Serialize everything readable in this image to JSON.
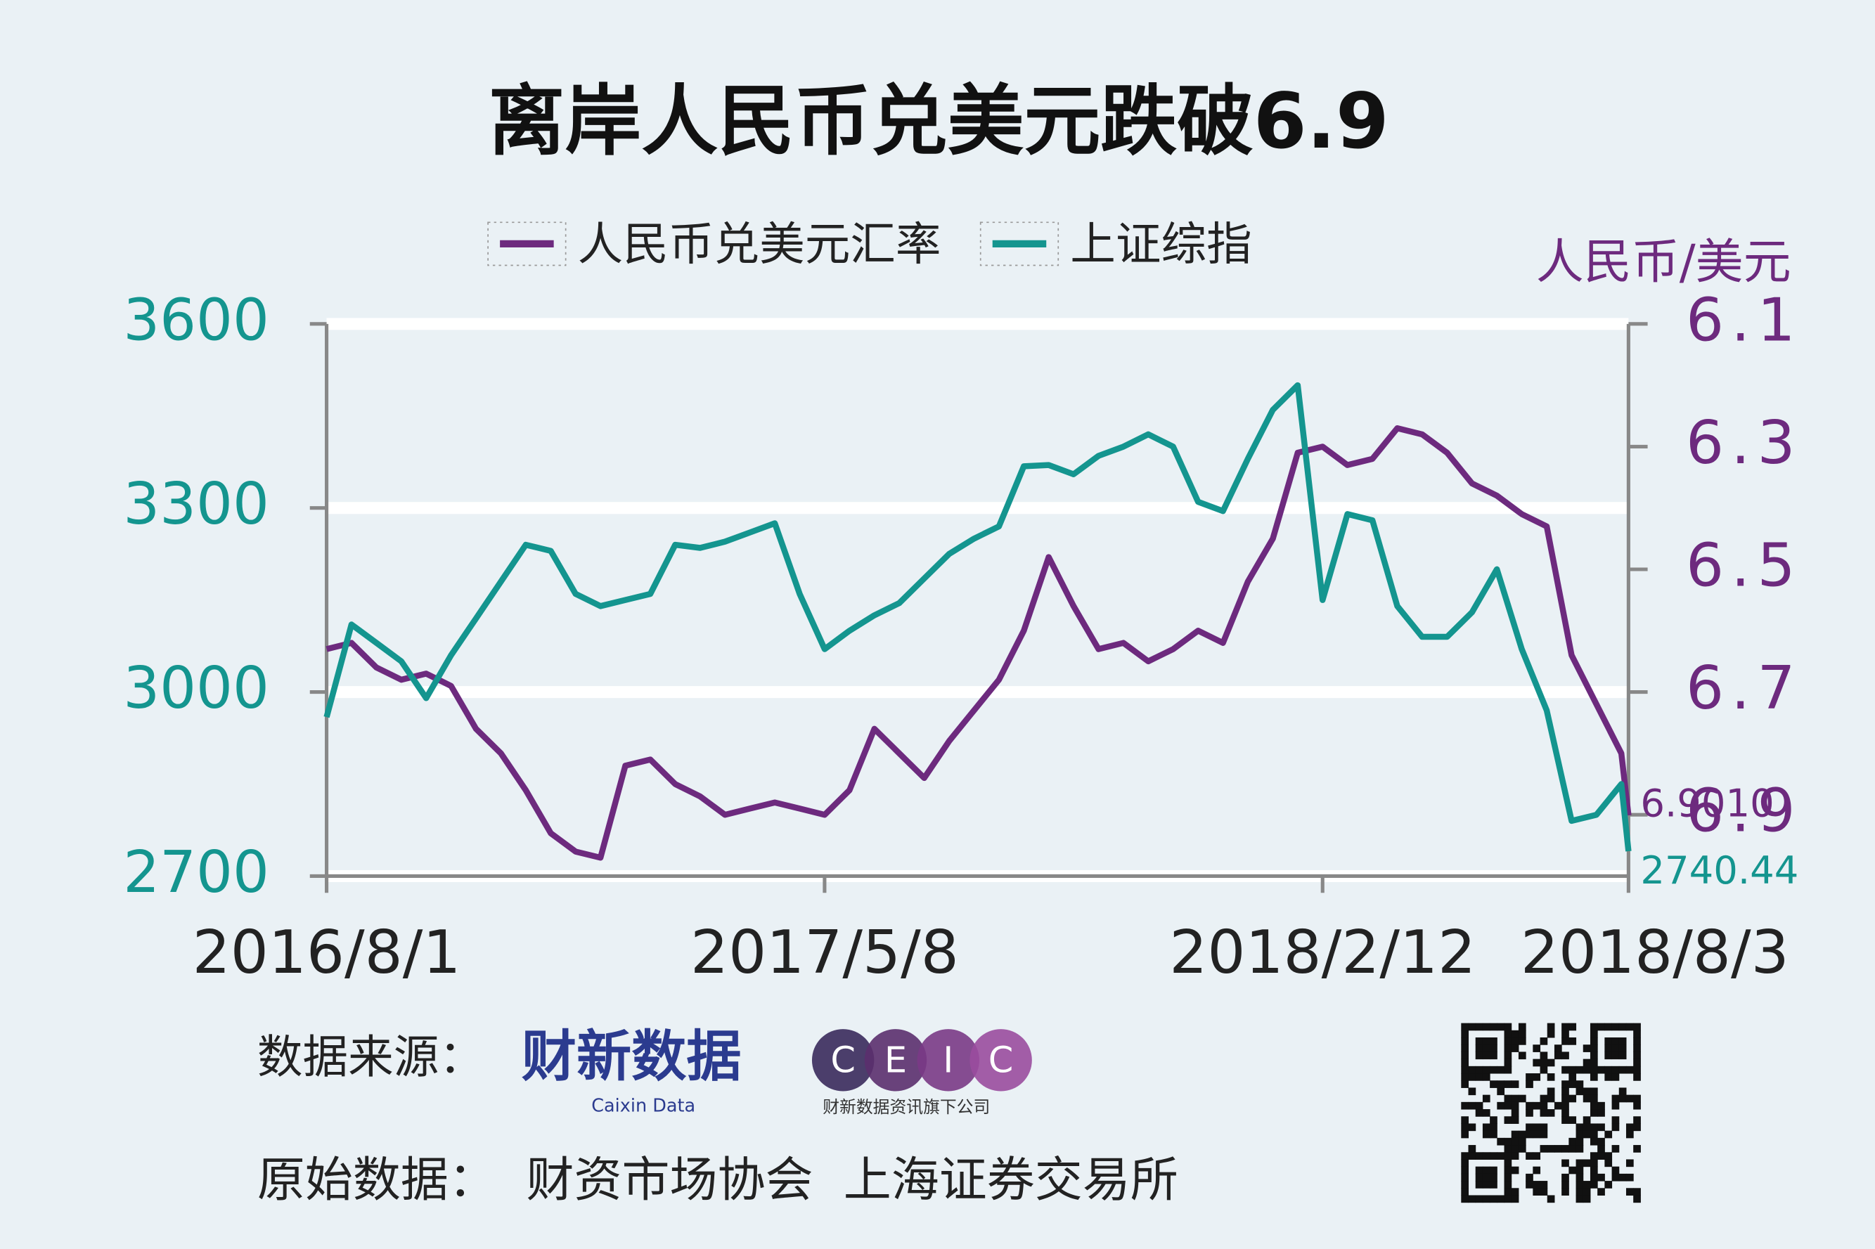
{
  "chart_data": {
    "type": "line",
    "title": "离岸人民币兑美元跌破6.9",
    "y2label": "人民币/美元",
    "x": [
      "2016/8/1",
      "2016/8/15",
      "2016/8/29",
      "2016/9/12",
      "2016/9/26",
      "2016/10/10",
      "2016/10/24",
      "2016/11/7",
      "2016/11/21",
      "2016/12/5",
      "2016/12/19",
      "2017/1/2",
      "2017/1/16",
      "2017/1/30",
      "2017/2/13",
      "2017/2/27",
      "2017/3/13",
      "2017/3/27",
      "2017/4/10",
      "2017/4/24",
      "2017/5/8",
      "2017/5/22",
      "2017/6/5",
      "2017/6/19",
      "2017/7/3",
      "2017/7/17",
      "2017/7/31",
      "2017/8/14",
      "2017/8/28",
      "2017/9/11",
      "2017/9/25",
      "2017/10/9",
      "2017/10/23",
      "2017/11/6",
      "2017/11/20",
      "2017/12/4",
      "2017/12/18",
      "2018/1/1",
      "2018/1/15",
      "2018/1/29",
      "2018/2/12",
      "2018/2/26",
      "2018/3/12",
      "2018/3/26",
      "2018/4/9",
      "2018/4/23",
      "2018/5/7",
      "2018/5/21",
      "2018/6/4",
      "2018/6/18",
      "2018/7/2",
      "2018/7/16",
      "2018/7/30",
      "2018/8/3"
    ],
    "xlim": [
      "2016/8/1",
      "2018/8/3"
    ],
    "xticks": [
      "2016/8/1",
      "2017/5/8",
      "2018/2/12",
      "2018/8/3"
    ],
    "series": [
      {
        "name": "人民币兑美元汇率",
        "color": "#6d2a7e",
        "axis": "y2",
        "values": [
          6.63,
          6.62,
          6.66,
          6.68,
          6.67,
          6.69,
          6.76,
          6.8,
          6.86,
          6.93,
          6.96,
          6.97,
          6.82,
          6.81,
          6.85,
          6.87,
          6.9,
          6.89,
          6.88,
          6.89,
          6.9,
          6.86,
          6.76,
          6.8,
          6.84,
          6.78,
          6.73,
          6.68,
          6.6,
          6.48,
          6.56,
          6.63,
          6.62,
          6.65,
          6.63,
          6.6,
          6.62,
          6.52,
          6.45,
          6.31,
          6.3,
          6.33,
          6.32,
          6.27,
          6.28,
          6.31,
          6.36,
          6.38,
          6.41,
          6.43,
          6.64,
          6.72,
          6.8,
          6.901
        ],
        "value_labels": [
          null,
          null,
          null,
          null,
          null,
          null,
          null,
          null,
          null,
          null,
          null,
          null,
          null,
          null,
          null,
          null,
          null,
          null,
          null,
          null,
          null,
          null,
          null,
          null,
          null,
          null,
          null,
          null,
          null,
          null,
          null,
          null,
          null,
          null,
          null,
          null,
          null,
          null,
          null,
          null,
          null,
          null,
          null,
          null,
          null,
          null,
          null,
          null,
          null,
          null,
          null,
          null,
          null,
          "6.9010"
        ]
      },
      {
        "name": "上证综指",
        "color": "#14958f",
        "values": [
          2959,
          3110,
          3080,
          3050,
          2990,
          3060,
          3120,
          3180,
          3240,
          3230,
          3160,
          3140,
          3150,
          3160,
          3240,
          3235,
          3245,
          3260,
          3275,
          3160,
          3070,
          3100,
          3125,
          3145,
          3185,
          3225,
          3250,
          3270,
          3368,
          3370,
          3355,
          3385,
          3400,
          3420,
          3400,
          3310,
          3295,
          3380,
          3460,
          3500,
          3150,
          3290,
          3280,
          3140,
          3090,
          3090,
          3130,
          3200,
          3070,
          2970,
          2790,
          2800,
          2850,
          2740.44
        ],
        "value_labels": [
          null,
          null,
          null,
          null,
          null,
          null,
          null,
          null,
          null,
          null,
          null,
          null,
          null,
          null,
          null,
          null,
          null,
          null,
          null,
          null,
          null,
          null,
          null,
          null,
          null,
          null,
          null,
          null,
          null,
          null,
          null,
          null,
          null,
          null,
          null,
          null,
          null,
          null,
          null,
          null,
          null,
          null,
          null,
          null,
          null,
          null,
          null,
          null,
          null,
          null,
          null,
          null,
          null,
          "2740.44"
        ]
      }
    ],
    "ylim": [
      2700,
      3600
    ],
    "yticks": [
      2700,
      3000,
      3300,
      3600
    ],
    "y2lim": [
      7,
      6.1
    ],
    "y2ticks": [
      6.1,
      6.3,
      6.5,
      6.7,
      6.9
    ],
    "grid": true
  },
  "footer": {
    "source_label": "数据来源：",
    "logo_cn": "财新数据",
    "logo_en": "Caixin Data",
    "ceic": [
      "C",
      "E",
      "I",
      "C"
    ],
    "ceic_sub": "财新数据资讯旗下公司",
    "raw_label": "原始数据：",
    "raw_sources": "财资市场协会  上海证券交易所"
  }
}
